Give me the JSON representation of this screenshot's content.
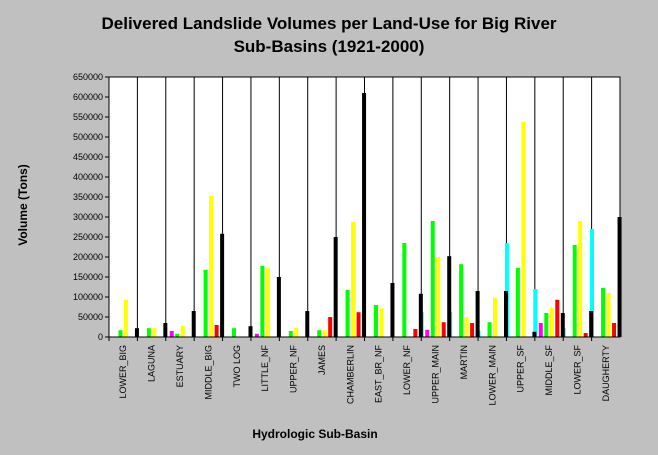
{
  "chart_data": {
    "type": "bar",
    "title_line1": "Delivered Landslide Volumes per Land-Use for Big River",
    "title_line2": "Sub-Basins (1921-2000)",
    "xlabel": "Hydrologic Sub-Basin",
    "ylabel": "Volume (Tons)",
    "ylim": [
      0,
      650000
    ],
    "ytick_step": 50000,
    "grid": "vertical category separators",
    "legend": "none",
    "categories": [
      "LOWER_BIG",
      "LAGUNA",
      "ESTUARY",
      "MIDDLE_BIG",
      "TWO LOG",
      "LITTLE_NF",
      "UPPER_NF",
      "JAMES",
      "CHAMBERLIN",
      "EAST_BR_NF",
      "LOWER_NF",
      "UPPER_MAIN",
      "MARTIN",
      "LOWER_MAIN",
      "UPPER_SF",
      "MIDDLE_SF",
      "LOWER_SF",
      "DAUGHERTY"
    ],
    "series": [
      {
        "color": "#00ffff",
        "values": [
          0,
          0,
          0,
          0,
          0,
          0,
          0,
          0,
          0,
          0,
          0,
          62000,
          62000,
          15000,
          235000,
          120000,
          22000,
          270000
        ]
      },
      {
        "color": "#ff00ff",
        "values": [
          0,
          0,
          15000,
          0,
          0,
          8000,
          0,
          0,
          0,
          0,
          0,
          18000,
          0,
          0,
          0,
          35000,
          0,
          0
        ]
      },
      {
        "color": "#00ff00",
        "values": [
          17000,
          22000,
          8000,
          168000,
          22000,
          178000,
          15000,
          17000,
          118000,
          80000,
          235000,
          290000,
          182000,
          37000,
          173000,
          60000,
          230000,
          123000
        ]
      },
      {
        "color": "#ffff00",
        "values": [
          93000,
          22000,
          28000,
          353000,
          0,
          172000,
          23000,
          17000,
          288000,
          72000,
          0,
          200000,
          50000,
          98000,
          538000,
          72000,
          290000,
          110000
        ]
      },
      {
        "color": "#ff0000",
        "values": [
          0,
          0,
          0,
          30000,
          0,
          0,
          0,
          50000,
          62000,
          0,
          20000,
          37000,
          35000,
          0,
          0,
          93000,
          10000,
          35000
        ]
      },
      {
        "color": "#000000",
        "values": [
          22000,
          35000,
          65000,
          258000,
          27000,
          150000,
          65000,
          250000,
          610000,
          135000,
          108000,
          202000,
          115000,
          115000,
          13000,
          60000,
          65000,
          300000
        ]
      }
    ]
  }
}
